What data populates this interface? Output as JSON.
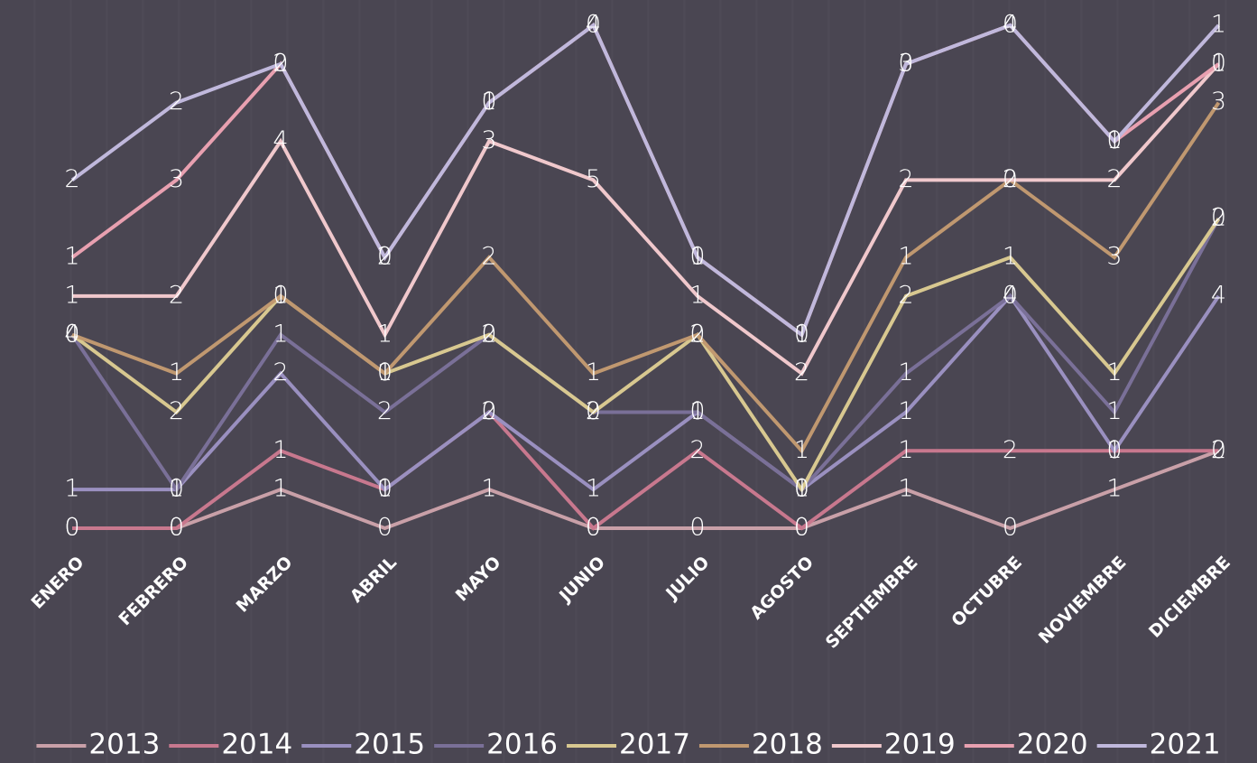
{
  "chart_data": {
    "type": "line",
    "stacked": true,
    "categories": [
      "ENERO",
      "FEBRERO",
      "MARZO",
      "ABRIL",
      "MAYO",
      "JUNIO",
      "JULIO",
      "AGOSTO",
      "SEPTIEMBRE",
      "OCTUBRE",
      "NOVIEMBRE",
      "DICIEMBRE"
    ],
    "ylim": [
      0,
      13
    ],
    "series": [
      {
        "name": "2013",
        "color": "#c9a0a8",
        "values": [
          0,
          0,
          1,
          0,
          1,
          0,
          0,
          0,
          1,
          0,
          1,
          2
        ]
      },
      {
        "name": "2014",
        "color": "#c8788e",
        "values": [
          0,
          0,
          1,
          1,
          2,
          0,
          2,
          0,
          1,
          2,
          1,
          0
        ]
      },
      {
        "name": "2015",
        "color": "#9a90c0",
        "values": [
          1,
          1,
          2,
          0,
          0,
          1,
          1,
          1,
          1,
          4,
          0,
          4
        ]
      },
      {
        "name": "2016",
        "color": "#7a7098",
        "values": [
          4,
          0,
          1,
          2,
          2,
          2,
          0,
          0,
          1,
          0,
          1,
          2
        ]
      },
      {
        "name": "2017",
        "color": "#d8c890",
        "values": [
          0,
          2,
          1,
          1,
          0,
          0,
          2,
          0,
          2,
          1,
          1,
          0
        ]
      },
      {
        "name": "2018",
        "color": "#c09870",
        "values": [
          0,
          1,
          0,
          0,
          2,
          1,
          0,
          1,
          1,
          2,
          3,
          3
        ]
      },
      {
        "name": "2019",
        "color": "#f0c8cc",
        "values": [
          1,
          2,
          4,
          1,
          3,
          5,
          1,
          2,
          2,
          0,
          2,
          1
        ]
      },
      {
        "name": "2020",
        "color": "#e8a0b0",
        "values": [
          1,
          3,
          2,
          2,
          1,
          4,
          1,
          1,
          3,
          4,
          1,
          0
        ]
      },
      {
        "name": "2021",
        "color": "#c0b8dc",
        "values": [
          2,
          2,
          0,
          0,
          0,
          0,
          0,
          0,
          0,
          0,
          0,
          1
        ]
      }
    ]
  }
}
